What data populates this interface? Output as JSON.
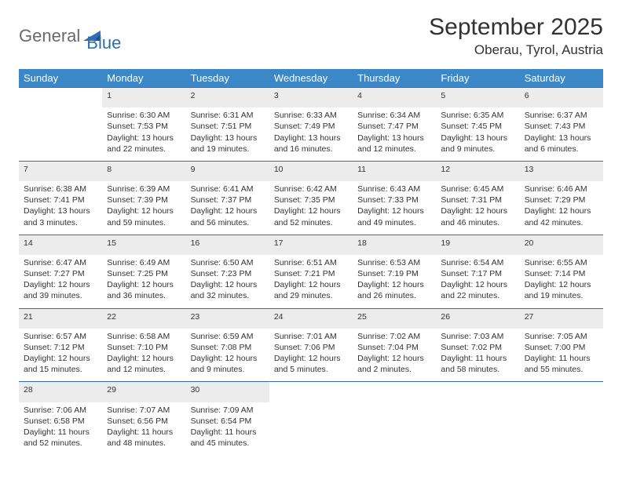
{
  "logo": {
    "part1": "General",
    "part2": "Blue"
  },
  "title": "September 2025",
  "location": "Oberau, Tyrol, Austria",
  "colors": {
    "header_bg": "#3b87c8",
    "header_text": "#ffffff",
    "daynum_bg": "#ececec",
    "row_border": "#2f6fb0",
    "body_text": "#333333",
    "logo_gray": "#6a6a6a",
    "logo_blue": "#2f6fb0"
  },
  "weekdays": [
    "Sunday",
    "Monday",
    "Tuesday",
    "Wednesday",
    "Thursday",
    "Friday",
    "Saturday"
  ],
  "weeks": [
    [
      null,
      {
        "d": "1",
        "sr": "Sunrise: 6:30 AM",
        "ss": "Sunset: 7:53 PM",
        "dl": "Daylight: 13 hours and 22 minutes."
      },
      {
        "d": "2",
        "sr": "Sunrise: 6:31 AM",
        "ss": "Sunset: 7:51 PM",
        "dl": "Daylight: 13 hours and 19 minutes."
      },
      {
        "d": "3",
        "sr": "Sunrise: 6:33 AM",
        "ss": "Sunset: 7:49 PM",
        "dl": "Daylight: 13 hours and 16 minutes."
      },
      {
        "d": "4",
        "sr": "Sunrise: 6:34 AM",
        "ss": "Sunset: 7:47 PM",
        "dl": "Daylight: 13 hours and 12 minutes."
      },
      {
        "d": "5",
        "sr": "Sunrise: 6:35 AM",
        "ss": "Sunset: 7:45 PM",
        "dl": "Daylight: 13 hours and 9 minutes."
      },
      {
        "d": "6",
        "sr": "Sunrise: 6:37 AM",
        "ss": "Sunset: 7:43 PM",
        "dl": "Daylight: 13 hours and 6 minutes."
      }
    ],
    [
      {
        "d": "7",
        "sr": "Sunrise: 6:38 AM",
        "ss": "Sunset: 7:41 PM",
        "dl": "Daylight: 13 hours and 3 minutes."
      },
      {
        "d": "8",
        "sr": "Sunrise: 6:39 AM",
        "ss": "Sunset: 7:39 PM",
        "dl": "Daylight: 12 hours and 59 minutes."
      },
      {
        "d": "9",
        "sr": "Sunrise: 6:41 AM",
        "ss": "Sunset: 7:37 PM",
        "dl": "Daylight: 12 hours and 56 minutes."
      },
      {
        "d": "10",
        "sr": "Sunrise: 6:42 AM",
        "ss": "Sunset: 7:35 PM",
        "dl": "Daylight: 12 hours and 52 minutes."
      },
      {
        "d": "11",
        "sr": "Sunrise: 6:43 AM",
        "ss": "Sunset: 7:33 PM",
        "dl": "Daylight: 12 hours and 49 minutes."
      },
      {
        "d": "12",
        "sr": "Sunrise: 6:45 AM",
        "ss": "Sunset: 7:31 PM",
        "dl": "Daylight: 12 hours and 46 minutes."
      },
      {
        "d": "13",
        "sr": "Sunrise: 6:46 AM",
        "ss": "Sunset: 7:29 PM",
        "dl": "Daylight: 12 hours and 42 minutes."
      }
    ],
    [
      {
        "d": "14",
        "sr": "Sunrise: 6:47 AM",
        "ss": "Sunset: 7:27 PM",
        "dl": "Daylight: 12 hours and 39 minutes."
      },
      {
        "d": "15",
        "sr": "Sunrise: 6:49 AM",
        "ss": "Sunset: 7:25 PM",
        "dl": "Daylight: 12 hours and 36 minutes."
      },
      {
        "d": "16",
        "sr": "Sunrise: 6:50 AM",
        "ss": "Sunset: 7:23 PM",
        "dl": "Daylight: 12 hours and 32 minutes."
      },
      {
        "d": "17",
        "sr": "Sunrise: 6:51 AM",
        "ss": "Sunset: 7:21 PM",
        "dl": "Daylight: 12 hours and 29 minutes."
      },
      {
        "d": "18",
        "sr": "Sunrise: 6:53 AM",
        "ss": "Sunset: 7:19 PM",
        "dl": "Daylight: 12 hours and 26 minutes."
      },
      {
        "d": "19",
        "sr": "Sunrise: 6:54 AM",
        "ss": "Sunset: 7:17 PM",
        "dl": "Daylight: 12 hours and 22 minutes."
      },
      {
        "d": "20",
        "sr": "Sunrise: 6:55 AM",
        "ss": "Sunset: 7:14 PM",
        "dl": "Daylight: 12 hours and 19 minutes."
      }
    ],
    [
      {
        "d": "21",
        "sr": "Sunrise: 6:57 AM",
        "ss": "Sunset: 7:12 PM",
        "dl": "Daylight: 12 hours and 15 minutes."
      },
      {
        "d": "22",
        "sr": "Sunrise: 6:58 AM",
        "ss": "Sunset: 7:10 PM",
        "dl": "Daylight: 12 hours and 12 minutes."
      },
      {
        "d": "23",
        "sr": "Sunrise: 6:59 AM",
        "ss": "Sunset: 7:08 PM",
        "dl": "Daylight: 12 hours and 9 minutes."
      },
      {
        "d": "24",
        "sr": "Sunrise: 7:01 AM",
        "ss": "Sunset: 7:06 PM",
        "dl": "Daylight: 12 hours and 5 minutes."
      },
      {
        "d": "25",
        "sr": "Sunrise: 7:02 AM",
        "ss": "Sunset: 7:04 PM",
        "dl": "Daylight: 12 hours and 2 minutes."
      },
      {
        "d": "26",
        "sr": "Sunrise: 7:03 AM",
        "ss": "Sunset: 7:02 PM",
        "dl": "Daylight: 11 hours and 58 minutes."
      },
      {
        "d": "27",
        "sr": "Sunrise: 7:05 AM",
        "ss": "Sunset: 7:00 PM",
        "dl": "Daylight: 11 hours and 55 minutes."
      }
    ],
    [
      {
        "d": "28",
        "sr": "Sunrise: 7:06 AM",
        "ss": "Sunset: 6:58 PM",
        "dl": "Daylight: 11 hours and 52 minutes."
      },
      {
        "d": "29",
        "sr": "Sunrise: 7:07 AM",
        "ss": "Sunset: 6:56 PM",
        "dl": "Daylight: 11 hours and 48 minutes."
      },
      {
        "d": "30",
        "sr": "Sunrise: 7:09 AM",
        "ss": "Sunset: 6:54 PM",
        "dl": "Daylight: 11 hours and 45 minutes."
      },
      null,
      null,
      null,
      null
    ]
  ]
}
